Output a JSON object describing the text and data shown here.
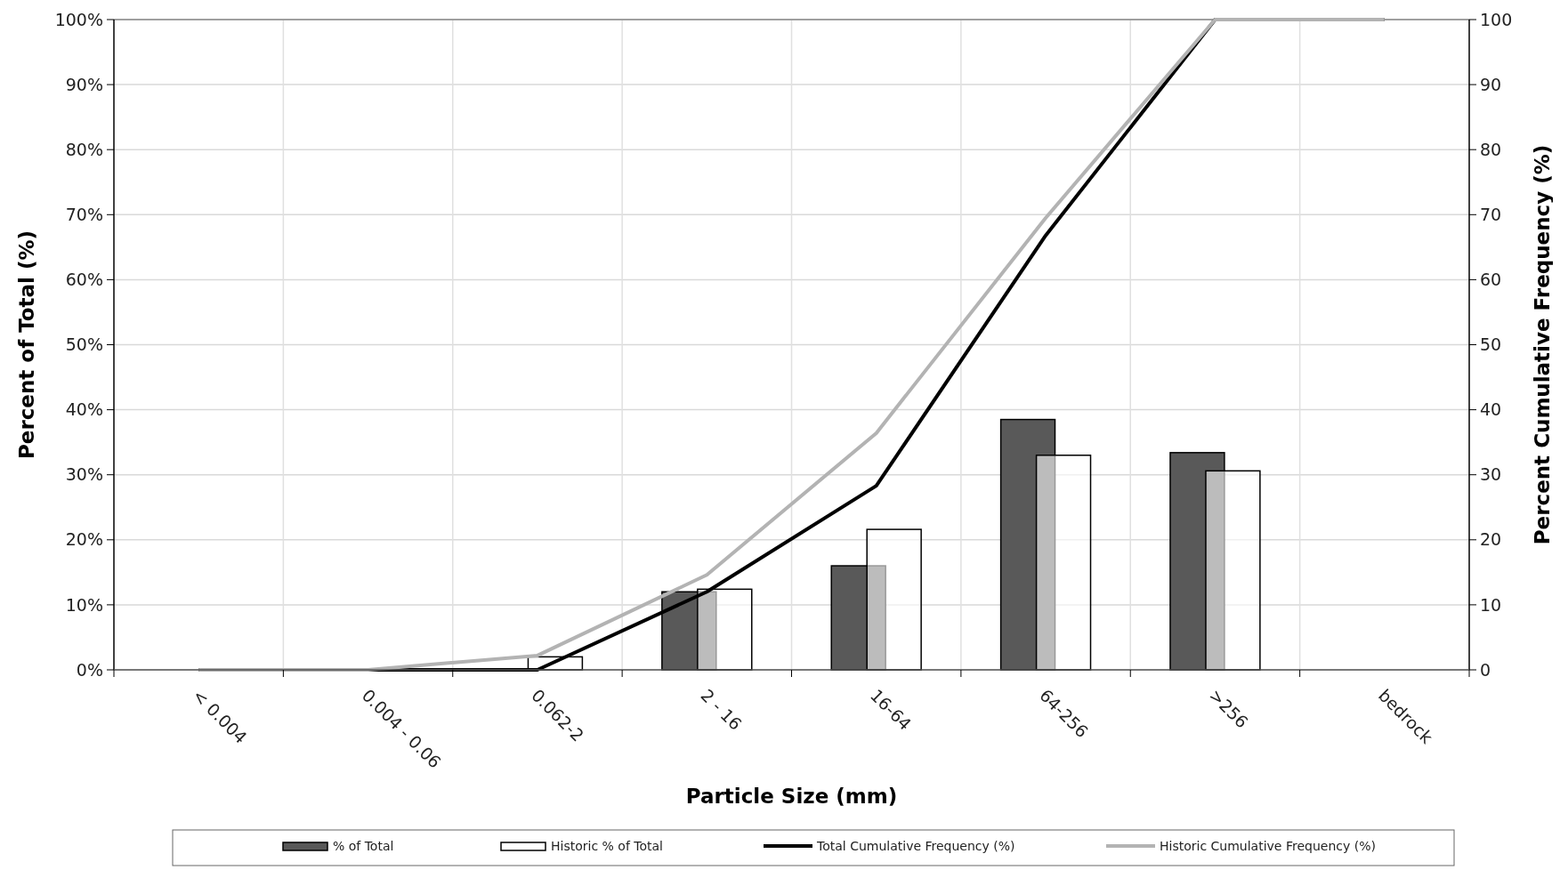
{
  "chart_data": {
    "type": "bar",
    "xlabel": "Particle Size (mm)",
    "ylabel": "Percent of Total (%)",
    "y2label": "Percent Cumulative Frequency (%)",
    "categories": [
      "< 0.004",
      "0.004 - 0.06",
      "0.062-2",
      "2 - 16",
      "16-64",
      "64-256",
      ">256",
      "bedrock"
    ],
    "series": [
      {
        "name": "% of Total",
        "color": "#595959",
        "values": [
          0,
          0,
          0,
          12,
          16,
          38.5,
          33.4,
          0
        ]
      },
      {
        "name": "Historic % of Total",
        "color": "#ffffff",
        "values": [
          0,
          0,
          2,
          12.4,
          21.6,
          33,
          30.6,
          0
        ]
      },
      {
        "name": "Total Cumulative Frequency (%)",
        "type": "line",
        "axis": "y2",
        "color": "#000000",
        "values": [
          0,
          0,
          0,
          12,
          28.3,
          66.8,
          100,
          100
        ]
      },
      {
        "name": "Historic Cumulative Frequency (%)",
        "type": "line",
        "axis": "y2",
        "color": "#b3b3b3",
        "values": [
          0,
          0,
          2.2,
          14.6,
          36.4,
          69.5,
          100,
          100
        ]
      }
    ],
    "ylim": [
      0,
      100
    ],
    "yticks": [
      {
        "value": 0,
        "label": "0%"
      },
      {
        "value": 10,
        "label": "10%"
      },
      {
        "value": 20,
        "label": "20%"
      },
      {
        "value": 30,
        "label": "30%"
      },
      {
        "value": 40,
        "label": "40%"
      },
      {
        "value": 50,
        "label": "50%"
      },
      {
        "value": 60,
        "label": "60%"
      },
      {
        "value": 70,
        "label": "70%"
      },
      {
        "value": 80,
        "label": "80%"
      },
      {
        "value": 90,
        "label": "90%"
      },
      {
        "value": 100,
        "label": "100%"
      }
    ],
    "y2lim": [
      0,
      100
    ],
    "y2ticks": [
      0,
      10,
      20,
      30,
      40,
      50,
      60,
      70,
      80,
      90,
      100
    ],
    "grid": true,
    "legend": "bottom",
    "marker": "none",
    "line_style": "solid"
  }
}
